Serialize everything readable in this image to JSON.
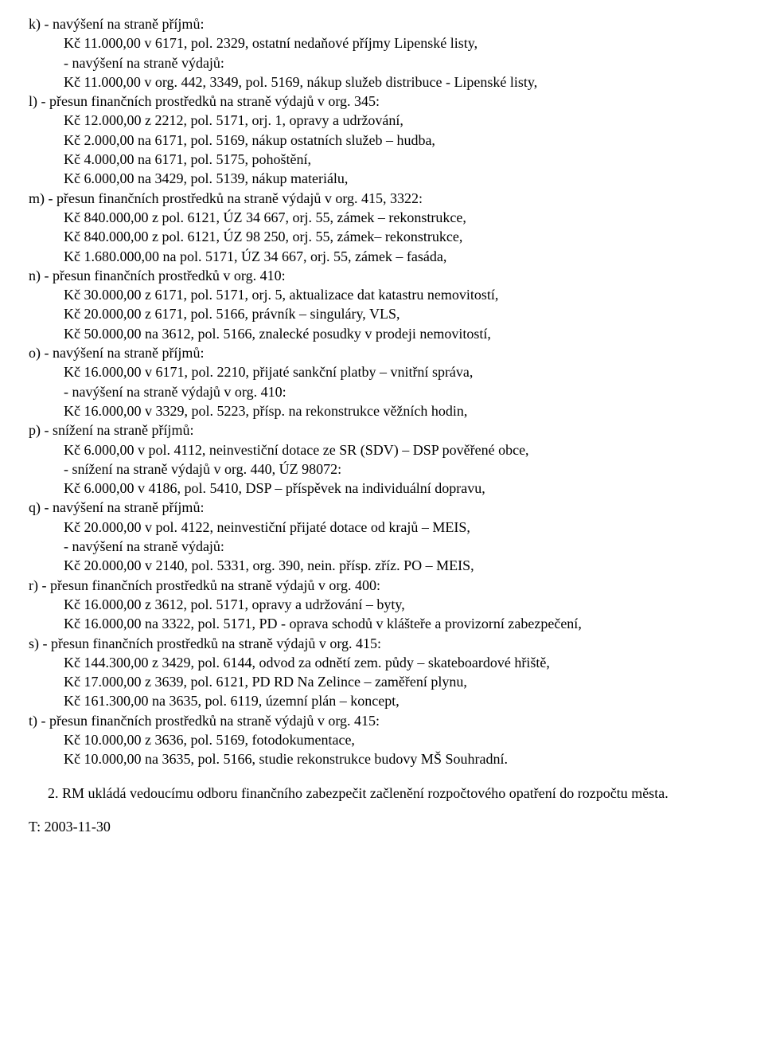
{
  "lines": {
    "l0": "k) - navýšení na straně příjmů:",
    "l1": "Kč 11.000,00 v 6171, pol. 2329, ostatní nedaňové příjmy Lipenské listy,",
    "l2": "- navýšení na straně výdajů:",
    "l3": "Kč 11.000,00 v org. 442, 3349, pol. 5169, nákup služeb distribuce - Lipenské listy,",
    "l4": "l) - přesun finančních prostředků na straně výdajů v org. 345:",
    "l5": "Kč 12.000,00 z 2212, pol. 5171, orj. 1, opravy a udržování,",
    "l6": "Kč 2.000,00 na 6171, pol. 5169, nákup ostatních služeb – hudba,",
    "l7": "Kč 4.000,00 na 6171, pol. 5175, pohoštění,",
    "l8": "Kč 6.000,00 na 3429, pol. 5139, nákup materiálu,",
    "l9": "m) - přesun finančních prostředků na straně výdajů v org. 415, 3322:",
    "l10": "Kč 840.000,00 z pol. 6121, ÚZ 34 667, orj. 55, zámek – rekonstrukce,",
    "l11": "Kč 840.000,00 z pol. 6121, ÚZ 98 250, orj. 55, zámek– rekonstrukce,",
    "l12": "Kč 1.680.000,00 na pol. 5171, ÚZ 34 667, orj. 55, zámek – fasáda,",
    "l13": "n) - přesun finančních prostředků v org. 410:",
    "l14": "Kč 30.000,00 z 6171, pol. 5171, orj. 5, aktualizace dat katastru nemovitostí,",
    "l15": "Kč 20.000,00 z 6171, pol. 5166, právník – singuláry, VLS,",
    "l16": "Kč 50.000,00 na 3612, pol. 5166, znalecké posudky v prodeji nemovitostí,",
    "l17": "o) - navýšení na straně příjmů:",
    "l18": "Kč 16.000,00 v 6171, pol. 2210, přijaté sankční platby – vnitřní správa,",
    "l19": "- navýšení na straně výdajů v org. 410:",
    "l20": "Kč 16.000,00 v 3329, pol. 5223, přísp. na rekonstrukce věžních hodin,",
    "l21": "p) - snížení na straně příjmů:",
    "l22": "Kč 6.000,00 v pol. 4112, neinvestiční dotace ze SR (SDV) – DSP pověřené obce,",
    "l23": "- snížení na straně výdajů v org. 440, ÚZ 98072:",
    "l24": "Kč 6.000,00 v 4186, pol. 5410, DSP – příspěvek na individuální dopravu,",
    "l25": "q) - navýšení na straně příjmů:",
    "l26": "Kč 20.000,00 v pol. 4122, neinvestiční přijaté dotace od krajů – MEIS,",
    "l27": "- navýšení na straně výdajů:",
    "l28": "Kč 20.000,00 v 2140, pol. 5331, org. 390, nein. přísp. zříz. PO – MEIS,",
    "l29": "r) - přesun finančních prostředků na straně výdajů v org. 400:",
    "l30": "Kč 16.000,00 z 3612, pol. 5171, opravy a udržování – byty,",
    "l31": "Kč 16.000,00 na 3322, pol. 5171, PD - oprava schodů v klášteře a provizorní zabezpečení,",
    "l32": "s) - přesun finančních prostředků na straně výdajů v org. 415:",
    "l33": "Kč 144.300,00 z 3429, pol. 6144, odvod za odnětí zem. půdy – skateboardové hřiště,",
    "l34": "Kč 17.000,00 z 3639, pol. 6121, PD RD Na Zelince – zaměření plynu,",
    "l35": "Kč 161.300,00 na 3635, pol. 6119, územní plán – koncept,",
    "l36": "t) - přesun finančních prostředků na straně výdajů v org. 415:",
    "l37": "Kč 10.000,00 z 3636, pol. 5169, fotodokumentace,",
    "l38": "Kč 10.000,00 na 3635, pol. 5166, studie rekonstrukce budovy MŠ Souhradní.",
    "p2": "2. RM ukládá vedoucímu odboru finančního zabezpečit začlenění rozpočtového opatření do rozpočtu města.",
    "date": "T: 2003-11-30"
  }
}
